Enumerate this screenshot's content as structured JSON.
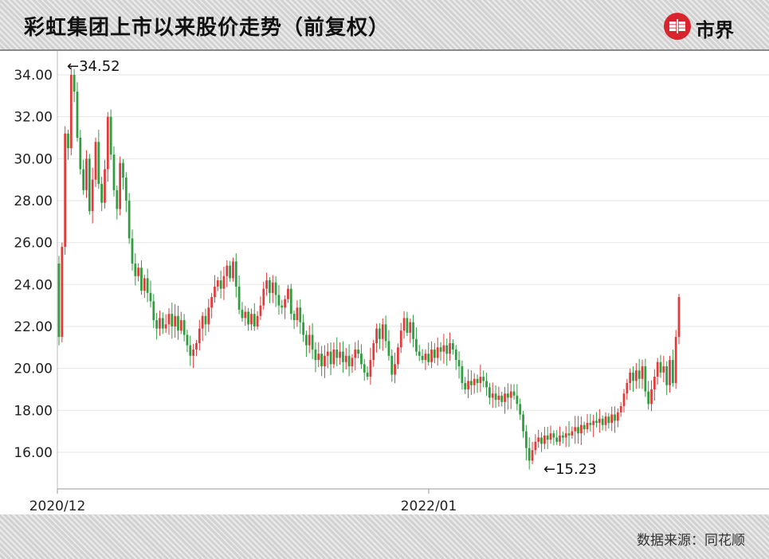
{
  "header": {
    "title": "彩虹集团上市以来股价走势（前复权）",
    "logo_text": "市界",
    "logo_icon": "shijie-logo-icon"
  },
  "footer": {
    "source": "数据来源：同花顺"
  },
  "colors": {
    "up": "#e23b3b",
    "down": "#2e9e3f",
    "logo": "#d9232d"
  },
  "chart_data": {
    "type": "candlestick",
    "title": "彩虹集团上市以来股价走势（前复权）",
    "xlabel": "",
    "ylabel": "",
    "y_ticks": [
      "34.00",
      "32.00",
      "30.00",
      "28.00",
      "26.00",
      "24.00",
      "22.00",
      "20.00",
      "18.00",
      "16.00"
    ],
    "ylim": [
      14.5,
      35.5
    ],
    "x_ticks": [
      "2020/12",
      "2022/01"
    ],
    "grid": true,
    "annotations": [
      {
        "label": "←34.52",
        "value": 34.52,
        "kind": "high"
      },
      {
        "label": "←15.23",
        "value": 15.23,
        "kind": "low"
      }
    ],
    "series": [
      {
        "values": [
          21.5,
          25.8,
          31.2,
          30.5,
          34.0,
          33.2,
          31.0,
          29.5,
          28.5,
          30.0,
          27.5,
          29.0,
          30.8,
          28.8,
          27.9,
          29.5,
          32.0,
          30.2,
          28.5,
          27.6,
          29.8,
          29.1,
          28.0,
          26.2,
          25.0,
          24.4,
          24.8,
          23.7,
          24.3,
          23.6,
          23.2,
          22.3,
          21.9,
          22.4,
          21.9,
          22.1,
          22.6,
          22.0,
          22.5,
          21.8,
          22.3,
          21.6,
          21.1,
          20.6,
          20.9,
          21.2,
          21.9,
          22.5,
          22.1,
          22.9,
          23.4,
          23.9,
          24.2,
          23.8,
          24.4,
          24.9,
          24.3,
          25.1,
          23.9,
          22.8,
          22.4,
          22.7,
          22.1,
          22.6,
          22.0,
          22.5,
          23.0,
          23.8,
          24.2,
          23.6,
          24.1,
          23.5,
          23.0,
          22.9,
          23.3,
          23.8,
          22.6,
          22.3,
          22.9,
          22.2,
          21.6,
          21.1,
          21.6,
          20.9,
          20.4,
          20.7,
          20.1,
          20.6,
          20.8,
          20.2,
          20.9,
          20.5,
          20.8,
          20.3,
          20.6,
          20.1,
          20.5,
          20.9,
          20.7,
          20.2,
          19.8,
          19.6,
          20.4,
          21.2,
          21.9,
          21.4,
          22.1,
          21.3,
          20.6,
          19.7,
          20.2,
          21.0,
          21.8,
          22.4,
          21.7,
          22.2,
          21.4,
          20.8,
          20.6,
          20.4,
          20.7,
          20.3,
          20.9,
          20.5,
          21.0,
          20.8,
          21.1,
          20.7,
          21.2,
          20.9,
          20.4,
          20.1,
          19.3,
          19.0,
          19.4,
          19.2,
          19.5,
          19.3,
          19.6,
          19.4,
          19.1,
          18.6,
          18.8,
          18.5,
          18.7,
          18.4,
          18.8,
          18.6,
          18.9,
          18.7,
          18.3,
          17.8,
          17.0,
          16.2,
          15.6,
          16.1,
          16.5,
          16.7,
          16.4,
          16.8,
          16.6,
          16.9,
          16.7,
          16.5,
          16.8,
          16.7,
          16.9,
          16.8,
          17.0,
          17.2,
          16.9,
          17.3,
          17.1,
          17.4,
          17.3,
          17.5,
          17.4,
          17.6,
          17.3,
          17.7,
          17.4,
          17.8,
          17.5,
          17.9,
          18.2,
          18.8,
          19.3,
          19.8,
          19.4,
          19.9,
          19.5,
          20.1,
          18.9,
          18.3,
          19.0,
          19.6,
          20.3,
          19.8,
          20.1,
          19.2,
          20.4,
          19.3,
          21.5,
          23.4
        ]
      }
    ]
  }
}
